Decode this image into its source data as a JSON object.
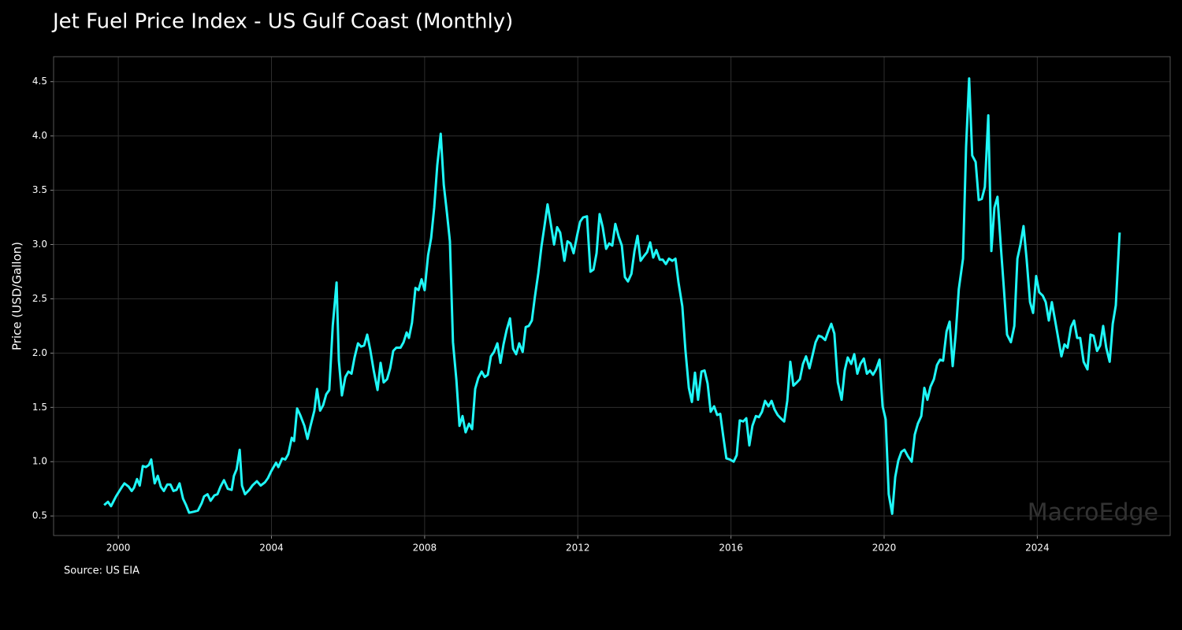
{
  "chart_data": {
    "type": "line",
    "title": "Jet Fuel Price Index - US Gulf Coast (Monthly)",
    "y_label": "Price (USD/Gallon)",
    "source": "Source: US EIA",
    "watermark": "MacroEdge",
    "grid": true,
    "xlim": [
      1998.31,
      2027.47
    ],
    "ylim": [
      0.32,
      4.73
    ],
    "xticks": [
      2000,
      2004,
      2008,
      2012,
      2016,
      2020,
      2024
    ],
    "yticks": [
      0.5,
      {
        "value": 1,
        "label": "1.0"
      },
      1.5,
      {
        "value": 2,
        "label": "2.0"
      },
      2.5,
      {
        "value": 3,
        "label": "3.0"
      },
      3.5,
      {
        "value": 4,
        "label": "4.0"
      },
      4.5
    ],
    "x": [
      1999.63,
      1999.73,
      1999.81,
      1999.94,
      2000.1,
      2000.16,
      2000.27,
      2000.35,
      2000.41,
      2000.49,
      2000.56,
      2000.64,
      2000.72,
      2000.8,
      2000.86,
      2000.95,
      2001.03,
      2001.11,
      2001.19,
      2001.28,
      2001.36,
      2001.44,
      2001.52,
      2001.6,
      2001.69,
      2001.77,
      2001.85,
      2001.98,
      2002.08,
      2002.18,
      2002.24,
      2002.33,
      2002.41,
      2002.51,
      2002.59,
      2002.67,
      2002.76,
      2002.86,
      2002.96,
      2003.02,
      2003.09,
      2003.17,
      2003.23,
      2003.31,
      2003.42,
      2003.5,
      2003.62,
      2003.72,
      2003.83,
      2003.91,
      2003.99,
      2004.12,
      2004.18,
      2004.28,
      2004.36,
      2004.44,
      2004.53,
      2004.59,
      2004.67,
      2004.75,
      2004.86,
      2004.94,
      2005.02,
      2005.12,
      2005.19,
      2005.27,
      2005.35,
      2005.43,
      2005.51,
      2005.6,
      2005.7,
      2005.76,
      2005.84,
      2005.93,
      2006.01,
      2006.09,
      2006.17,
      2006.26,
      2006.34,
      2006.42,
      2006.5,
      2006.58,
      2006.67,
      2006.77,
      2006.85,
      2006.93,
      2007.02,
      2007.1,
      2007.18,
      2007.26,
      2007.37,
      2007.45,
      2007.53,
      2007.59,
      2007.67,
      2007.76,
      2007.84,
      2007.92,
      2008.0,
      2008.09,
      2008.17,
      2008.25,
      2008.33,
      2008.42,
      2008.5,
      2008.58,
      2008.66,
      2008.74,
      2008.83,
      2008.91,
      2008.99,
      2009.07,
      2009.16,
      2009.24,
      2009.32,
      2009.4,
      2009.49,
      2009.57,
      2009.65,
      2009.73,
      2009.81,
      2009.9,
      2009.98,
      2010.06,
      2010.14,
      2010.23,
      2010.31,
      2010.39,
      2010.47,
      2010.56,
      2010.64,
      2010.72,
      2010.8,
      2010.88,
      2010.97,
      2011.05,
      2011.13,
      2011.21,
      2011.3,
      2011.38,
      2011.46,
      2011.54,
      2011.65,
      2011.73,
      2011.81,
      2011.89,
      2011.98,
      2012.06,
      2012.14,
      2012.24,
      2012.33,
      2012.41,
      2012.49,
      2012.57,
      2012.65,
      2012.74,
      2012.82,
      2012.9,
      2012.98,
      2013.07,
      2013.15,
      2013.23,
      2013.31,
      2013.4,
      2013.48,
      2013.56,
      2013.64,
      2013.72,
      2013.81,
      2013.89,
      2013.97,
      2014.05,
      2014.14,
      2014.22,
      2014.3,
      2014.38,
      2014.47,
      2014.55,
      2014.63,
      2014.73,
      2014.81,
      2014.9,
      2014.98,
      2015.06,
      2015.14,
      2015.23,
      2015.31,
      2015.39,
      2015.47,
      2015.56,
      2015.64,
      2015.72,
      2015.8,
      2015.88,
      2015.97,
      2016.07,
      2016.15,
      2016.23,
      2016.32,
      2016.4,
      2016.48,
      2016.56,
      2016.65,
      2016.73,
      2016.81,
      2016.89,
      2016.98,
      2017.06,
      2017.14,
      2017.22,
      2017.3,
      2017.39,
      2017.47,
      2017.55,
      2017.63,
      2017.72,
      2017.8,
      2017.88,
      2017.96,
      2018.05,
      2018.13,
      2018.21,
      2018.29,
      2018.37,
      2018.46,
      2018.54,
      2018.62,
      2018.7,
      2018.79,
      2018.89,
      2018.97,
      2019.05,
      2019.14,
      2019.22,
      2019.3,
      2019.38,
      2019.47,
      2019.55,
      2019.63,
      2019.71,
      2019.79,
      2019.88,
      2019.96,
      2020.04,
      2020.12,
      2020.21,
      2020.29,
      2020.37,
      2020.45,
      2020.53,
      2020.62,
      2020.72,
      2020.8,
      2020.88,
      2020.97,
      2021.05,
      2021.13,
      2021.21,
      2021.3,
      2021.38,
      2021.46,
      2021.54,
      2021.63,
      2021.71,
      2021.79,
      2021.87,
      2021.95,
      2022.06,
      2022.14,
      2022.22,
      2022.3,
      2022.39,
      2022.47,
      2022.55,
      2022.63,
      2022.72,
      2022.8,
      2022.88,
      2022.96,
      2023.05,
      2023.13,
      2023.21,
      2023.31,
      2023.4,
      2023.48,
      2023.56,
      2023.64,
      2023.72,
      2023.81,
      2023.89,
      2023.97,
      2024.05,
      2024.14,
      2024.22,
      2024.3,
      2024.38,
      2024.47,
      2024.55,
      2024.63,
      2024.71,
      2024.79,
      2024.88,
      2024.96,
      2025.04,
      2025.12,
      2025.21,
      2025.31,
      2025.39,
      2025.47,
      2025.56,
      2025.64,
      2025.72,
      2025.8,
      2025.89,
      2025.97,
      2026.05,
      2026.15
    ],
    "series": [
      {
        "name": "Jet Fuel Price",
        "color": "#1ff7f7",
        "values": [
          0.6,
          0.63,
          0.59,
          0.68,
          0.77,
          0.8,
          0.77,
          0.73,
          0.76,
          0.84,
          0.78,
          0.96,
          0.95,
          0.97,
          1.02,
          0.8,
          0.87,
          0.77,
          0.73,
          0.79,
          0.79,
          0.73,
          0.74,
          0.8,
          0.66,
          0.6,
          0.53,
          0.54,
          0.55,
          0.62,
          0.68,
          0.7,
          0.64,
          0.69,
          0.7,
          0.77,
          0.83,
          0.75,
          0.74,
          0.87,
          0.93,
          1.11,
          0.78,
          0.7,
          0.74,
          0.78,
          0.82,
          0.78,
          0.81,
          0.85,
          0.91,
          0.99,
          0.95,
          1.03,
          1.02,
          1.07,
          1.22,
          1.19,
          1.49,
          1.43,
          1.33,
          1.21,
          1.33,
          1.47,
          1.67,
          1.47,
          1.52,
          1.62,
          1.66,
          2.25,
          2.65,
          1.93,
          1.61,
          1.78,
          1.83,
          1.81,
          1.96,
          2.09,
          2.06,
          2.07,
          2.17,
          2.03,
          1.84,
          1.66,
          1.91,
          1.73,
          1.76,
          1.86,
          2.02,
          2.05,
          2.05,
          2.1,
          2.19,
          2.14,
          2.28,
          2.6,
          2.58,
          2.68,
          2.58,
          2.9,
          3.06,
          3.34,
          3.73,
          4.02,
          3.55,
          3.3,
          3.03,
          2.1,
          1.75,
          1.33,
          1.42,
          1.27,
          1.35,
          1.3,
          1.67,
          1.77,
          1.83,
          1.78,
          1.8,
          1.97,
          2.01,
          2.09,
          1.91,
          2.08,
          2.21,
          2.32,
          2.04,
          1.99,
          2.09,
          2.01,
          2.24,
          2.25,
          2.3,
          2.52,
          2.74,
          2.98,
          3.17,
          3.37,
          3.18,
          3.0,
          3.16,
          3.11,
          2.85,
          3.03,
          3.01,
          2.92,
          3.08,
          3.21,
          3.25,
          3.26,
          2.75,
          2.77,
          2.92,
          3.28,
          3.16,
          2.96,
          3.01,
          2.99,
          3.19,
          3.07,
          2.99,
          2.7,
          2.66,
          2.73,
          2.94,
          3.08,
          2.85,
          2.89,
          2.93,
          3.02,
          2.88,
          2.95,
          2.86,
          2.86,
          2.82,
          2.87,
          2.85,
          2.87,
          2.65,
          2.43,
          2.03,
          1.68,
          1.55,
          1.82,
          1.57,
          1.83,
          1.84,
          1.72,
          1.46,
          1.51,
          1.43,
          1.44,
          1.23,
          1.03,
          1.02,
          1.0,
          1.06,
          1.38,
          1.37,
          1.4,
          1.15,
          1.33,
          1.42,
          1.41,
          1.46,
          1.56,
          1.51,
          1.56,
          1.48,
          1.43,
          1.4,
          1.37,
          1.56,
          1.92,
          1.7,
          1.73,
          1.76,
          1.9,
          1.97,
          1.86,
          1.98,
          2.1,
          2.16,
          2.15,
          2.12,
          2.2,
          2.27,
          2.18,
          1.73,
          1.57,
          1.84,
          1.96,
          1.9,
          1.99,
          1.81,
          1.9,
          1.95,
          1.81,
          1.84,
          1.8,
          1.85,
          1.94,
          1.51,
          1.39,
          0.7,
          0.52,
          0.86,
          1.01,
          1.09,
          1.11,
          1.05,
          1.0,
          1.25,
          1.35,
          1.42,
          1.68,
          1.57,
          1.69,
          1.76,
          1.89,
          1.94,
          1.93,
          2.2,
          2.29,
          1.88,
          2.18,
          2.59,
          2.87,
          3.9,
          4.53,
          3.82,
          3.76,
          3.41,
          3.42,
          3.53,
          4.19,
          2.94,
          3.34,
          3.44,
          2.97,
          2.58,
          2.17,
          2.1,
          2.25,
          2.87,
          3.0,
          3.17,
          2.87,
          2.47,
          2.37,
          2.71,
          2.56,
          2.53,
          2.47,
          2.3,
          2.47,
          2.29,
          2.13,
          1.97,
          2.08,
          2.05,
          2.24,
          2.3,
          2.14,
          2.14,
          1.92,
          1.85,
          2.17,
          2.16,
          2.02,
          2.07,
          2.25,
          2.05,
          1.92,
          2.27,
          2.44,
          3.11
        ]
      }
    ]
  }
}
